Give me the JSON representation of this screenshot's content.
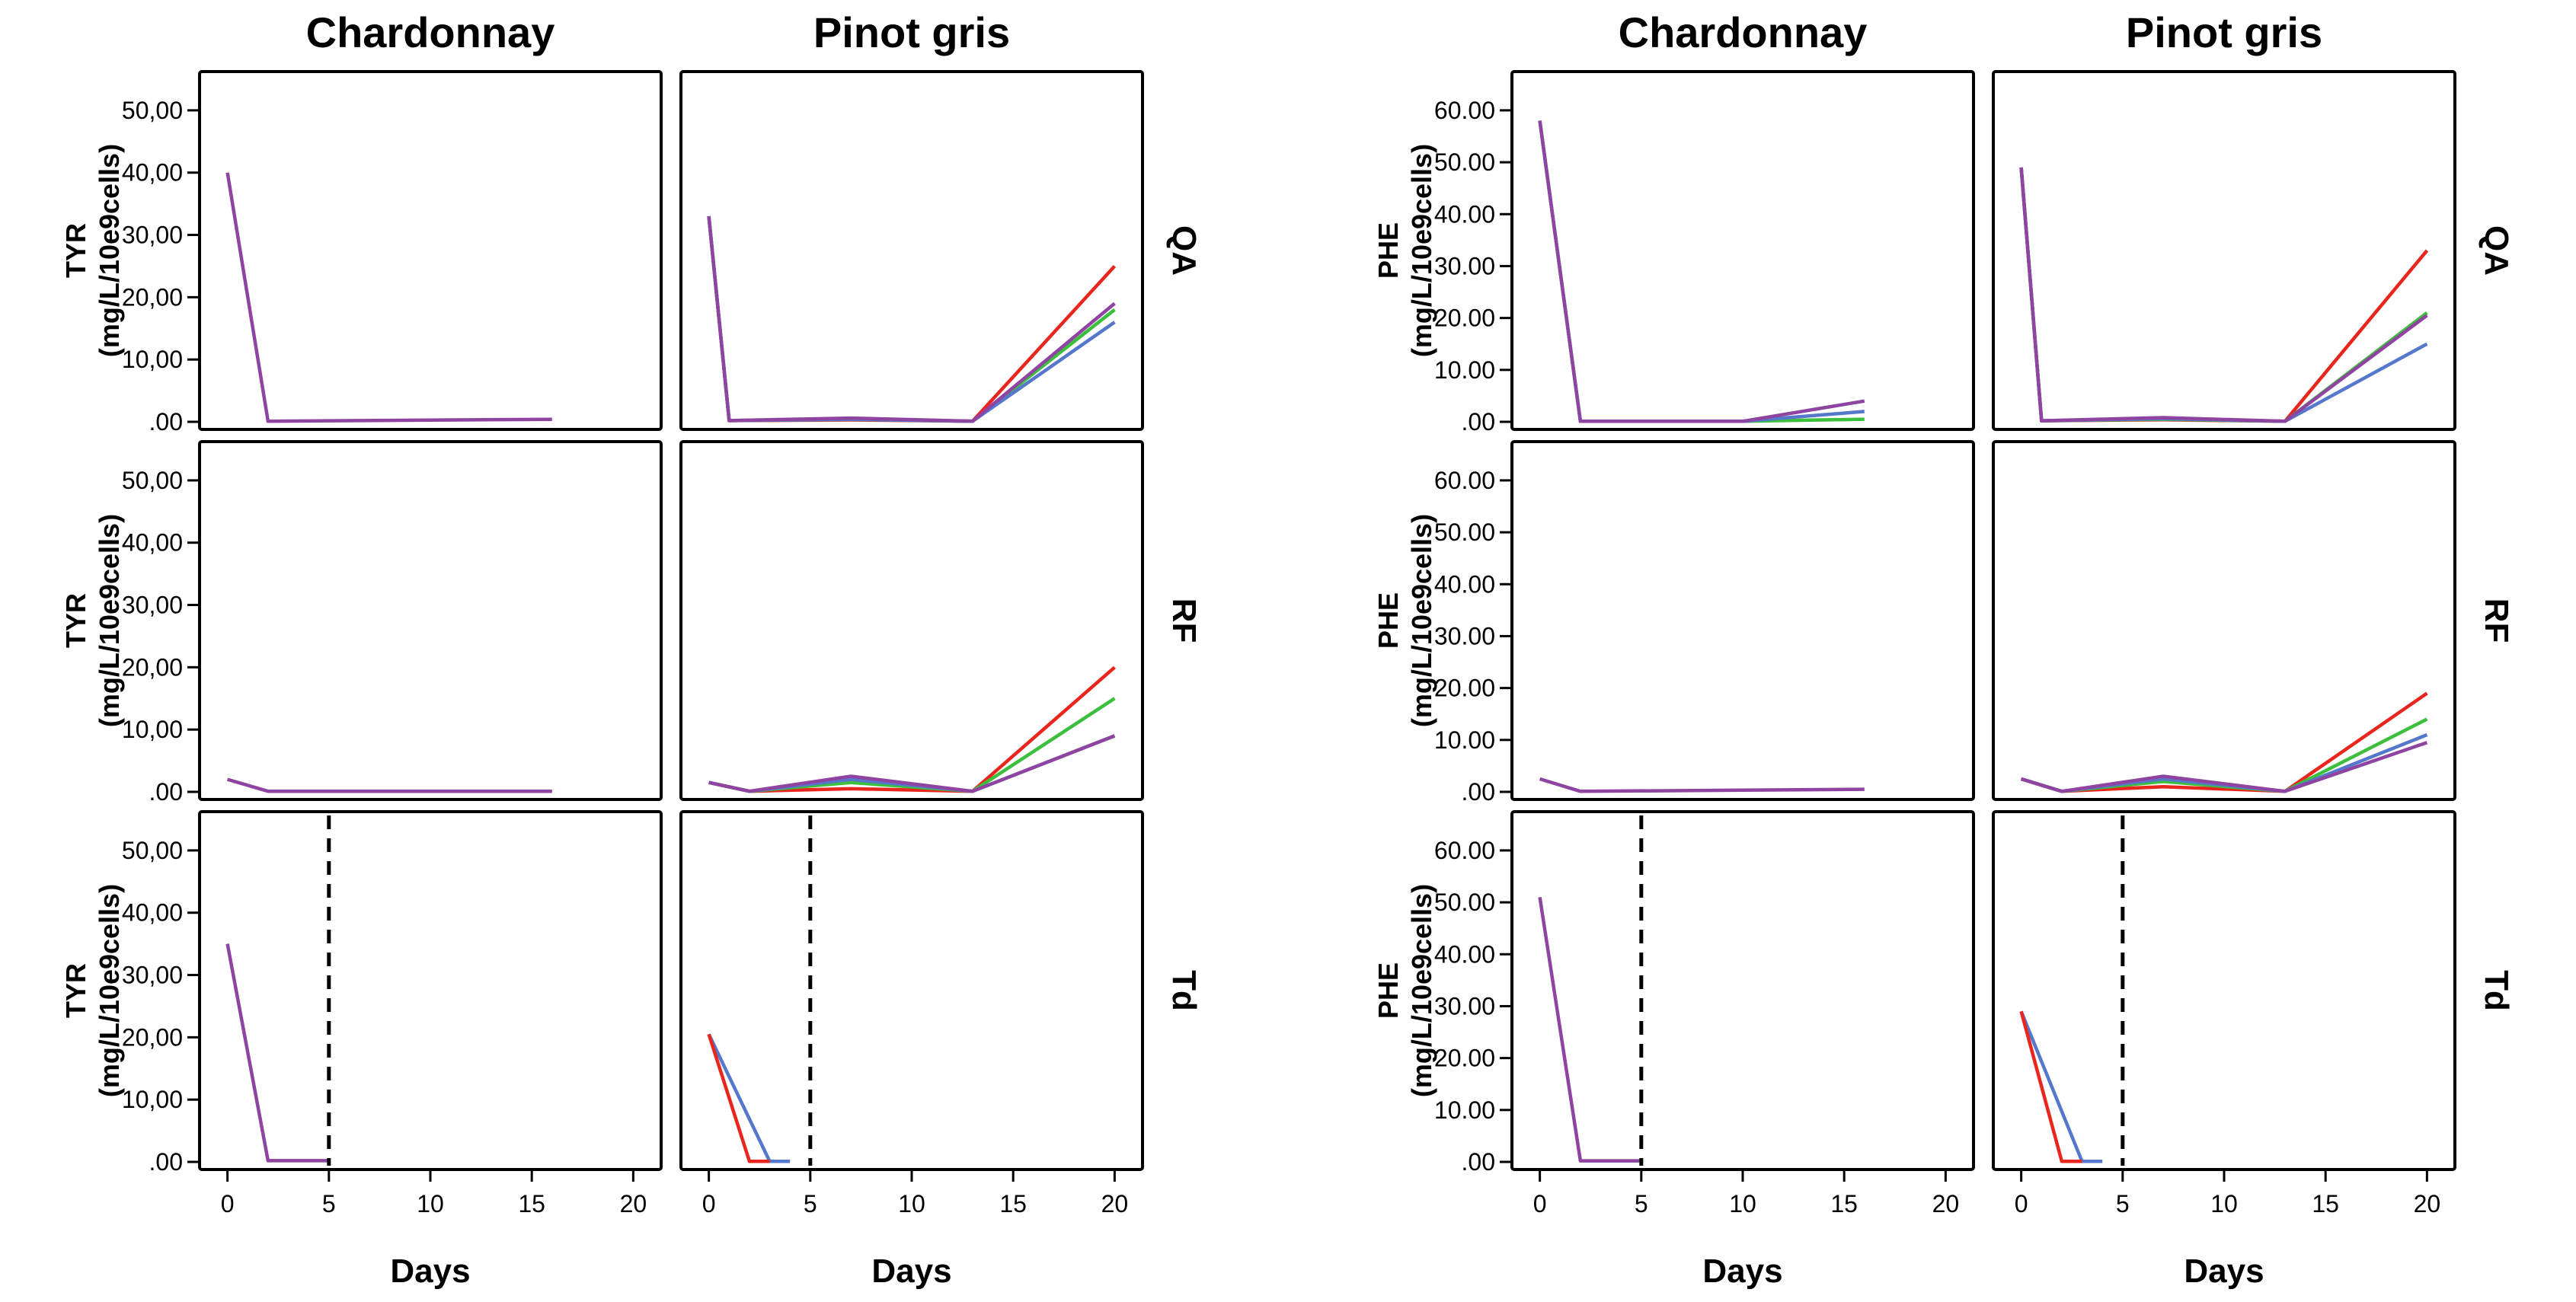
{
  "chart_data": {
    "type": "line",
    "series_colors": {
      "red": "#e8261e",
      "green": "#3cbf3c",
      "blue": "#5577cc",
      "purple": "#8e44a0"
    },
    "x_ticks": [
      "0",
      "5",
      "10",
      "15",
      "20"
    ],
    "xlim": [
      -1,
      21
    ],
    "xlabel": "Days",
    "groups": [
      {
        "col_titles": [
          "Chardonnay",
          "Pinot gris"
        ],
        "ylabel_top": "TYR",
        "ylabel_bottom": "(mg/L/10e9cells)",
        "y_ticks": [
          ".00",
          "10,00",
          "20,00",
          "30,00",
          "40,00",
          "50,00"
        ],
        "ylim": [
          0,
          55
        ],
        "rows": [
          {
            "label": "QA",
            "panels": [
              {
                "marker_x": null,
                "series": [
                  {
                    "color": "purple",
                    "x": [
                      0,
                      2,
                      16
                    ],
                    "y": [
                      40,
                      0.1,
                      0.4
                    ]
                  }
                ]
              },
              {
                "marker_x": null,
                "series": [
                  {
                    "color": "red",
                    "x": [
                      0,
                      1,
                      7,
                      13,
                      20
                    ],
                    "y": [
                      33,
                      0.2,
                      0.3,
                      0.1,
                      25
                    ]
                  },
                  {
                    "color": "green",
                    "x": [
                      0,
                      1,
                      7,
                      13,
                      20
                    ],
                    "y": [
                      33,
                      0.2,
                      0.4,
                      0.1,
                      18
                    ]
                  },
                  {
                    "color": "blue",
                    "x": [
                      0,
                      1,
                      7,
                      13,
                      20
                    ],
                    "y": [
                      33,
                      0.2,
                      0.4,
                      0.1,
                      16
                    ]
                  },
                  {
                    "color": "purple",
                    "x": [
                      0,
                      1,
                      7,
                      13,
                      20
                    ],
                    "y": [
                      33,
                      0.2,
                      0.6,
                      0.1,
                      19
                    ]
                  }
                ]
              }
            ]
          },
          {
            "label": "RF",
            "panels": [
              {
                "marker_x": null,
                "series": [
                  {
                    "color": "purple",
                    "x": [
                      0,
                      2,
                      16
                    ],
                    "y": [
                      2,
                      0.1,
                      0.1
                    ]
                  }
                ]
              },
              {
                "marker_x": null,
                "series": [
                  {
                    "color": "red",
                    "x": [
                      0,
                      2,
                      7,
                      13,
                      20
                    ],
                    "y": [
                      1.5,
                      0.1,
                      0.5,
                      0.1,
                      20
                    ]
                  },
                  {
                    "color": "green",
                    "x": [
                      0,
                      2,
                      7,
                      13,
                      20
                    ],
                    "y": [
                      1.5,
                      0.1,
                      1.5,
                      0.1,
                      15
                    ]
                  },
                  {
                    "color": "blue",
                    "x": [
                      0,
                      2,
                      7,
                      13,
                      20
                    ],
                    "y": [
                      1.5,
                      0.1,
                      2,
                      0.1,
                      9
                    ]
                  },
                  {
                    "color": "purple",
                    "x": [
                      0,
                      2,
                      7,
                      13,
                      20
                    ],
                    "y": [
                      1.5,
                      0.1,
                      2.5,
                      0.1,
                      9
                    ]
                  }
                ]
              }
            ]
          },
          {
            "label": "Td",
            "panels": [
              {
                "marker_x": 5,
                "series": [
                  {
                    "color": "purple",
                    "x": [
                      0,
                      2,
                      5
                    ],
                    "y": [
                      35,
                      0.2,
                      0.2
                    ]
                  }
                ]
              },
              {
                "marker_x": 5,
                "series": [
                  {
                    "color": "blue",
                    "x": [
                      0,
                      3,
                      4
                    ],
                    "y": [
                      20.5,
                      0.1,
                      0.1
                    ]
                  },
                  {
                    "color": "red",
                    "x": [
                      0,
                      2,
                      3
                    ],
                    "y": [
                      20.5,
                      0.1,
                      0.1
                    ]
                  }
                ]
              }
            ]
          }
        ]
      },
      {
        "col_titles": [
          "Chardonnay",
          "Pinot gris"
        ],
        "ylabel_top": "PHE",
        "ylabel_bottom": "(mg/L/10e9cells)",
        "y_ticks": [
          ".00",
          "10.00",
          "20.00",
          "30.00",
          "40.00",
          "50.00",
          "60.00"
        ],
        "ylim": [
          0,
          66
        ],
        "rows": [
          {
            "label": "QA",
            "panels": [
              {
                "marker_x": null,
                "series": [
                  {
                    "color": "green",
                    "x": [
                      0,
                      2,
                      10,
                      16
                    ],
                    "y": [
                      58,
                      0.1,
                      0.1,
                      0.5
                    ]
                  },
                  {
                    "color": "blue",
                    "x": [
                      0,
                      2,
                      10,
                      16
                    ],
                    "y": [
                      58,
                      0.1,
                      0.1,
                      2
                    ]
                  },
                  {
                    "color": "purple",
                    "x": [
                      0,
                      2,
                      10,
                      16
                    ],
                    "y": [
                      58,
                      0.1,
                      0.1,
                      4
                    ]
                  }
                ]
              },
              {
                "marker_x": null,
                "series": [
                  {
                    "color": "red",
                    "x": [
                      0,
                      1,
                      7,
                      13,
                      20
                    ],
                    "y": [
                      49,
                      0.2,
                      0.4,
                      0.1,
                      33
                    ]
                  },
                  {
                    "color": "green",
                    "x": [
                      0,
                      1,
                      7,
                      13,
                      20
                    ],
                    "y": [
                      49,
                      0.2,
                      0.5,
                      0.1,
                      21
                    ]
                  },
                  {
                    "color": "blue",
                    "x": [
                      0,
                      1,
                      7,
                      13,
                      20
                    ],
                    "y": [
                      49,
                      0.2,
                      0.6,
                      0.1,
                      15
                    ]
                  },
                  {
                    "color": "purple",
                    "x": [
                      0,
                      1,
                      7,
                      13,
                      20
                    ],
                    "y": [
                      49,
                      0.2,
                      0.8,
                      0.1,
                      20.5
                    ]
                  }
                ]
              }
            ]
          },
          {
            "label": "RF",
            "panels": [
              {
                "marker_x": null,
                "series": [
                  {
                    "color": "purple",
                    "x": [
                      0,
                      2,
                      16
                    ],
                    "y": [
                      2.5,
                      0.1,
                      0.5
                    ]
                  }
                ]
              },
              {
                "marker_x": null,
                "series": [
                  {
                    "color": "red",
                    "x": [
                      0,
                      2,
                      7,
                      13,
                      20
                    ],
                    "y": [
                      2.5,
                      0.1,
                      1,
                      0.1,
                      19
                    ]
                  },
                  {
                    "color": "green",
                    "x": [
                      0,
                      2,
                      7,
                      13,
                      20
                    ],
                    "y": [
                      2.5,
                      0.1,
                      2,
                      0.1,
                      14
                    ]
                  },
                  {
                    "color": "blue",
                    "x": [
                      0,
                      2,
                      7,
                      13,
                      20
                    ],
                    "y": [
                      2.5,
                      0.1,
                      2.5,
                      0.1,
                      11
                    ]
                  },
                  {
                    "color": "purple",
                    "x": [
                      0,
                      2,
                      7,
                      13,
                      20
                    ],
                    "y": [
                      2.5,
                      0.1,
                      3,
                      0.1,
                      9.5
                    ]
                  }
                ]
              }
            ]
          },
          {
            "label": "Td",
            "panels": [
              {
                "marker_x": 5,
                "series": [
                  {
                    "color": "purple",
                    "x": [
                      0,
                      2,
                      5
                    ],
                    "y": [
                      51,
                      0.2,
                      0.2
                    ]
                  }
                ]
              },
              {
                "marker_x": 5,
                "series": [
                  {
                    "color": "blue",
                    "x": [
                      0,
                      3,
                      4
                    ],
                    "y": [
                      29,
                      0.1,
                      0.1
                    ]
                  },
                  {
                    "color": "red",
                    "x": [
                      0,
                      2,
                      3
                    ],
                    "y": [
                      29,
                      0.1,
                      0.1
                    ]
                  }
                ]
              }
            ]
          }
        ]
      }
    ]
  }
}
